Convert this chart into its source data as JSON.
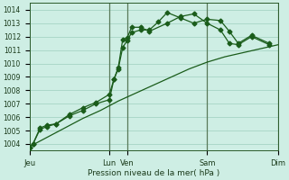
{
  "xlabel": "Pression niveau de la mer( hPa )",
  "background_color": "#ceeee4",
  "grid_color": "#9ecfbe",
  "line_color": "#1a5c1a",
  "vline_color": "#5a7a5a",
  "ylim": [
    1003.5,
    1014.5
  ],
  "xlim": [
    0,
    28
  ],
  "yticks": [
    1004,
    1005,
    1006,
    1007,
    1008,
    1009,
    1010,
    1011,
    1012,
    1013,
    1014
  ],
  "tick_positions": [
    0,
    9,
    11,
    20,
    28
  ],
  "tick_labels": [
    "Jeu",
    "Lun",
    "Ven",
    "Sam",
    "Dim"
  ],
  "day_vlines": [
    9,
    11,
    20,
    28
  ],
  "series1_x": [
    0,
    0.4,
    1.2,
    2.0,
    3.0,
    4.5,
    6.0,
    7.5,
    9.0,
    9.5,
    10.0,
    10.5,
    11.0,
    11.5,
    12.5,
    13.5,
    14.5,
    15.5,
    17.0,
    18.5,
    20.0,
    21.5,
    22.5,
    23.5,
    25.0,
    27.0
  ],
  "series1_y": [
    1003.7,
    1004.0,
    1005.1,
    1005.3,
    1005.5,
    1006.1,
    1006.5,
    1007.0,
    1007.3,
    1008.8,
    1009.6,
    1011.2,
    1011.7,
    1012.3,
    1012.5,
    1012.5,
    1013.1,
    1013.8,
    1013.4,
    1013.0,
    1013.3,
    1013.2,
    1012.4,
    1011.5,
    1012.1,
    1011.5
  ],
  "series2_x": [
    0,
    0.4,
    1.2,
    2.0,
    3.0,
    4.5,
    6.0,
    7.5,
    9.0,
    9.5,
    10.0,
    10.5,
    11.0,
    11.5,
    12.5,
    13.5,
    15.5,
    17.0,
    18.5,
    20.0,
    21.5,
    22.5,
    23.5,
    25.0,
    27.0
  ],
  "series2_y": [
    1003.7,
    1004.0,
    1005.2,
    1005.4,
    1005.5,
    1006.2,
    1006.7,
    1007.1,
    1007.7,
    1008.8,
    1009.7,
    1011.8,
    1011.9,
    1012.7,
    1012.7,
    1012.4,
    1013.0,
    1013.5,
    1013.7,
    1013.0,
    1012.5,
    1011.5,
    1011.4,
    1012.0,
    1011.4
  ],
  "series3_x": [
    0,
    2,
    4,
    6,
    8,
    10,
    12,
    14,
    16,
    18,
    20,
    22,
    24,
    26,
    28
  ],
  "series3_y": [
    1003.8,
    1004.5,
    1005.2,
    1005.9,
    1006.5,
    1007.2,
    1007.8,
    1008.4,
    1009.0,
    1009.6,
    1010.1,
    1010.5,
    1010.8,
    1011.1,
    1011.4
  ]
}
